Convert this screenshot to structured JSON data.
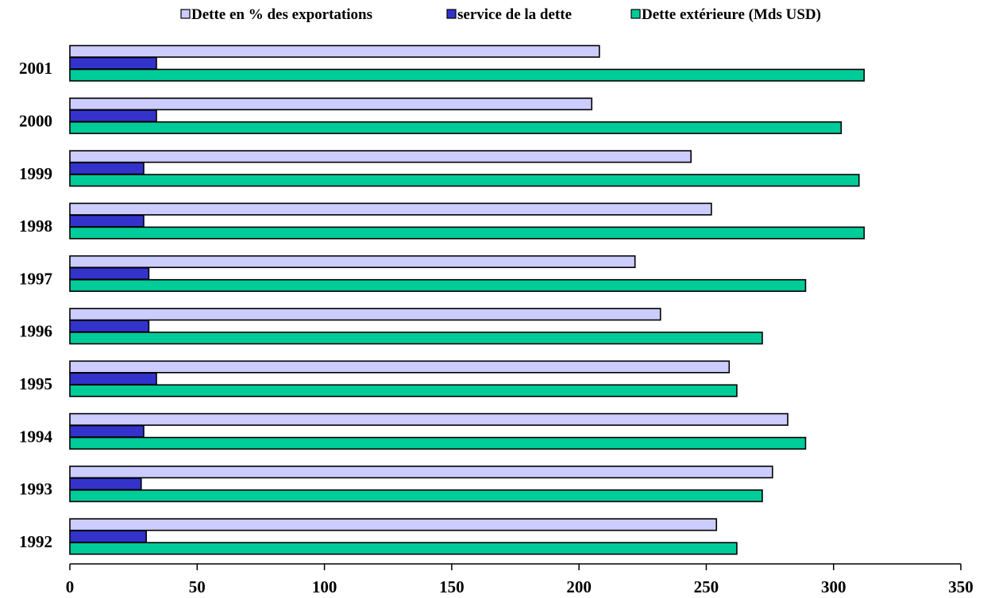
{
  "chart_data": {
    "type": "bar",
    "orientation": "horizontal",
    "title": "",
    "xlabel": "",
    "ylabel": "",
    "categories": [
      "1992",
      "1993",
      "1994",
      "1995",
      "1996",
      "1997",
      "1998",
      "1999",
      "2000",
      "2001"
    ],
    "series": [
      {
        "name": "Dette en % des exportations",
        "color": "#ccccff",
        "values": [
          254,
          276,
          282,
          259,
          232,
          222,
          252,
          244,
          205,
          208
        ]
      },
      {
        "name": "service de la dette",
        "color": "#3333cc",
        "values": [
          30,
          28,
          29,
          34,
          31,
          31,
          29,
          29,
          34,
          34
        ]
      },
      {
        "name": "Dette extérieure (Mds USD)",
        "color": "#00cc99",
        "values": [
          262,
          272,
          289,
          262,
          272,
          289,
          312,
          310,
          303,
          312
        ]
      }
    ],
    "xlim": [
      0,
      350
    ],
    "xticks": [
      "0",
      "50",
      "100",
      "150",
      "200",
      "250",
      "300",
      "350"
    ],
    "grid": false,
    "legend_position": "top"
  }
}
